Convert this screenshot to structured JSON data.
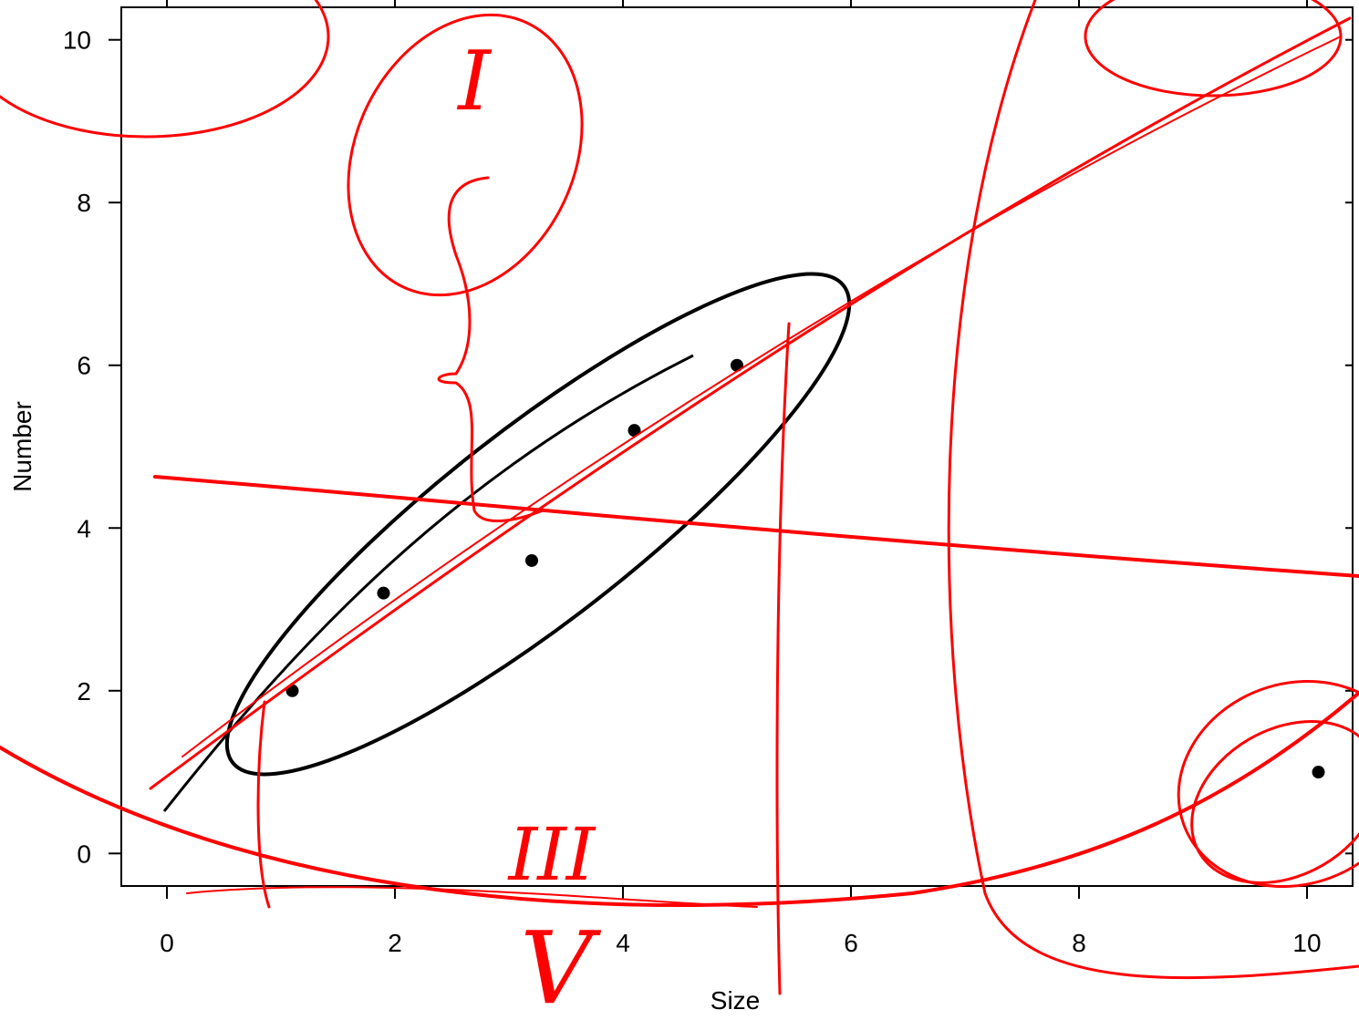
{
  "chart_data": {
    "type": "scatter",
    "x_label": "Size",
    "y_label": "Number",
    "x": [
      1.1,
      1.9,
      3.2,
      4.1,
      5.0,
      10.1
    ],
    "series": [
      {
        "color": "#000000",
        "values": [
          2,
          3.2,
          3.6,
          5.2,
          6,
          1
        ]
      }
    ],
    "xlim": [
      -0.4,
      10.4
    ],
    "ylim": [
      -0.4,
      10.4
    ],
    "xticks": [
      0,
      2,
      4,
      6,
      8,
      10
    ],
    "yticks": [
      0,
      2,
      4,
      6,
      8,
      10
    ],
    "annotations": [
      "I",
      "III",
      "V"
    ]
  }
}
